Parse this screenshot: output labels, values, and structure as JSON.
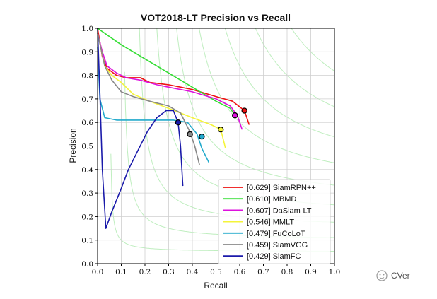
{
  "chart_data": {
    "type": "line",
    "title": "VOT2018-LT Precision vs Recall",
    "xlabel": "Recall",
    "ylabel": "Precision",
    "xlim": [
      0,
      1
    ],
    "ylim": [
      0,
      1
    ],
    "xticks": [
      "0.0",
      "0.1",
      "0.2",
      "0.3",
      "0.4",
      "0.5",
      "0.6",
      "0.7",
      "0.8",
      "0.9",
      "1.0"
    ],
    "yticks": [
      "0.0",
      "0.1",
      "0.2",
      "0.3",
      "0.4",
      "0.5",
      "0.6",
      "0.7",
      "0.8",
      "0.9",
      "1.0"
    ],
    "grid": true,
    "iso_f_contours": true,
    "legend_position": "lower-right",
    "series": [
      {
        "name": "[0.629] SiamRPN++",
        "color": "#ee1111",
        "points": [
          [
            0.0,
            1.0
          ],
          [
            0.02,
            0.88
          ],
          [
            0.04,
            0.83
          ],
          [
            0.08,
            0.8
          ],
          [
            0.12,
            0.79
          ],
          [
            0.18,
            0.79
          ],
          [
            0.22,
            0.77
          ],
          [
            0.3,
            0.76
          ],
          [
            0.4,
            0.74
          ],
          [
            0.5,
            0.71
          ],
          [
            0.57,
            0.69
          ],
          [
            0.62,
            0.65
          ],
          [
            0.64,
            0.59
          ]
        ],
        "marker": [
          0.62,
          0.65
        ]
      },
      {
        "name": "[0.610] MBMD",
        "color": "#33dd33",
        "points": [
          [
            0.0,
            1.0
          ],
          [
            0.1,
            0.93
          ],
          [
            0.2,
            0.87
          ],
          [
            0.3,
            0.81
          ],
          [
            0.4,
            0.75
          ],
          [
            0.5,
            0.69
          ],
          [
            0.56,
            0.66
          ],
          [
            0.58,
            0.63
          ]
        ],
        "marker": [
          0.58,
          0.63
        ]
      },
      {
        "name": "[0.607] DaSiam-LT",
        "color": "#dd11dd",
        "points": [
          [
            0.0,
            0.98
          ],
          [
            0.02,
            0.9
          ],
          [
            0.04,
            0.84
          ],
          [
            0.08,
            0.81
          ],
          [
            0.12,
            0.79
          ],
          [
            0.18,
            0.78
          ],
          [
            0.25,
            0.76
          ],
          [
            0.3,
            0.75
          ],
          [
            0.4,
            0.73
          ],
          [
            0.5,
            0.7
          ],
          [
            0.56,
            0.67
          ],
          [
            0.59,
            0.63
          ],
          [
            0.61,
            0.57
          ]
        ],
        "marker": [
          0.58,
          0.63
        ]
      },
      {
        "name": "[0.546] MMLT",
        "color": "#f4f43a",
        "points": [
          [
            0.0,
            0.98
          ],
          [
            0.03,
            0.84
          ],
          [
            0.06,
            0.8
          ],
          [
            0.1,
            0.77
          ],
          [
            0.15,
            0.72
          ],
          [
            0.22,
            0.69
          ],
          [
            0.3,
            0.66
          ],
          [
            0.4,
            0.62
          ],
          [
            0.48,
            0.59
          ],
          [
            0.52,
            0.57
          ],
          [
            0.54,
            0.49
          ]
        ],
        "marker": [
          0.52,
          0.57
        ]
      },
      {
        "name": "[0.479] FuCoLoT",
        "color": "#22aacc",
        "points": [
          [
            0.0,
            0.92
          ],
          [
            0.01,
            0.7
          ],
          [
            0.03,
            0.62
          ],
          [
            0.08,
            0.61
          ],
          [
            0.2,
            0.61
          ],
          [
            0.32,
            0.61
          ],
          [
            0.38,
            0.6
          ],
          [
            0.42,
            0.55
          ],
          [
            0.44,
            0.49
          ],
          [
            0.47,
            0.43
          ]
        ],
        "marker": [
          0.44,
          0.54
        ]
      },
      {
        "name": "[0.459] SiamVGG",
        "color": "#888888",
        "points": [
          [
            0.0,
            0.98
          ],
          [
            0.03,
            0.84
          ],
          [
            0.06,
            0.78
          ],
          [
            0.1,
            0.73
          ],
          [
            0.15,
            0.71
          ],
          [
            0.22,
            0.69
          ],
          [
            0.3,
            0.67
          ],
          [
            0.35,
            0.64
          ],
          [
            0.39,
            0.56
          ],
          [
            0.41,
            0.5
          ],
          [
            0.43,
            0.42
          ]
        ],
        "marker": [
          0.39,
          0.55
        ]
      },
      {
        "name": "[0.429] SiamFC",
        "color": "#1a1aaa",
        "points": [
          [
            0.0,
            1.0
          ],
          [
            0.01,
            0.72
          ],
          [
            0.02,
            0.4
          ],
          [
            0.035,
            0.15
          ],
          [
            0.06,
            0.22
          ],
          [
            0.1,
            0.32
          ],
          [
            0.13,
            0.4
          ],
          [
            0.17,
            0.48
          ],
          [
            0.21,
            0.56
          ],
          [
            0.25,
            0.62
          ],
          [
            0.29,
            0.65
          ],
          [
            0.32,
            0.65
          ],
          [
            0.34,
            0.6
          ],
          [
            0.35,
            0.5
          ],
          [
            0.36,
            0.33
          ]
        ],
        "marker": [
          0.34,
          0.6
        ]
      }
    ]
  },
  "watermark": {
    "text": "CVer",
    "icon": "wechat-icon"
  }
}
